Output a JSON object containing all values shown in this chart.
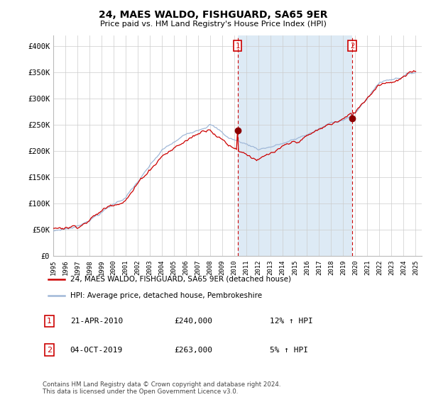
{
  "title": "24, MAES WALDO, FISHGUARD, SA65 9ER",
  "subtitle": "Price paid vs. HM Land Registry's House Price Index (HPI)",
  "ylim": [
    0,
    420000
  ],
  "yticks": [
    0,
    50000,
    100000,
    150000,
    200000,
    250000,
    300000,
    350000,
    400000
  ],
  "ytick_labels": [
    "£0",
    "£50K",
    "£100K",
    "£150K",
    "£200K",
    "£250K",
    "£300K",
    "£350K",
    "£400K"
  ],
  "hpi_color": "#a0b8d8",
  "price_color": "#cc0000",
  "shade_color": "#ddeaf5",
  "m1_yr": 2010.25,
  "m2_yr": 2019.75,
  "legend_price_label": "24, MAES WALDO, FISHGUARD, SA65 9ER (detached house)",
  "legend_hpi_label": "HPI: Average price, detached house, Pembrokeshire",
  "footer": "Contains HM Land Registry data © Crown copyright and database right 2024.\nThis data is licensed under the Open Government Licence v3.0.",
  "bg_color": "#ffffff",
  "grid_color": "#cccccc",
  "ann1_date": "21-APR-2010",
  "ann1_price": "£240,000",
  "ann1_hpi": "12% ↑ HPI",
  "ann2_date": "04-OCT-2019",
  "ann2_price": "£263,000",
  "ann2_hpi": "5% ↑ HPI"
}
